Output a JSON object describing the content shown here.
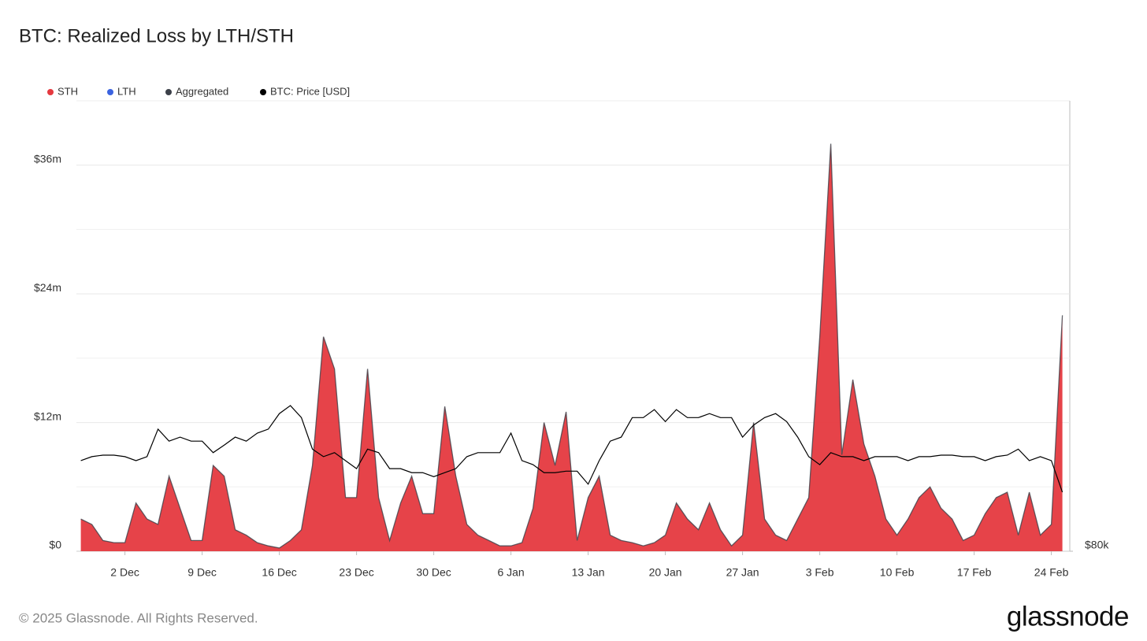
{
  "chart_data": {
    "type": "area",
    "title": "BTC: Realized Loss by LTH/STH",
    "footer": "© 2025 Glassnode. All Rights Reserved.",
    "brand": "glassnode",
    "x": [
      "28 Nov",
      "29 Nov",
      "30 Nov",
      "1 Dec",
      "2 Dec",
      "3 Dec",
      "4 Dec",
      "5 Dec",
      "6 Dec",
      "7 Dec",
      "8 Dec",
      "9 Dec",
      "10 Dec",
      "11 Dec",
      "12 Dec",
      "13 Dec",
      "14 Dec",
      "15 Dec",
      "16 Dec",
      "17 Dec",
      "18 Dec",
      "19 Dec",
      "20 Dec",
      "21 Dec",
      "22 Dec",
      "23 Dec",
      "24 Dec",
      "25 Dec",
      "26 Dec",
      "27 Dec",
      "28 Dec",
      "29 Dec",
      "30 Dec",
      "31 Dec",
      "1 Jan",
      "2 Jan",
      "3 Jan",
      "4 Jan",
      "5 Jan",
      "6 Jan",
      "7 Jan",
      "8 Jan",
      "9 Jan",
      "10 Jan",
      "11 Jan",
      "12 Jan",
      "13 Jan",
      "14 Jan",
      "15 Jan",
      "16 Jan",
      "17 Jan",
      "18 Jan",
      "19 Jan",
      "20 Jan",
      "21 Jan",
      "22 Jan",
      "23 Jan",
      "24 Jan",
      "25 Jan",
      "26 Jan",
      "27 Jan",
      "28 Jan",
      "29 Jan",
      "30 Jan",
      "31 Jan",
      "1 Feb",
      "2 Feb",
      "3 Feb",
      "4 Feb",
      "5 Feb",
      "6 Feb",
      "7 Feb",
      "8 Feb",
      "9 Feb",
      "10 Feb",
      "11 Feb",
      "12 Feb",
      "13 Feb",
      "14 Feb",
      "15 Feb",
      "16 Feb",
      "17 Feb",
      "18 Feb",
      "19 Feb",
      "20 Feb",
      "21 Feb",
      "22 Feb",
      "23 Feb",
      "24 Feb",
      "25 Feb"
    ],
    "xticks": [
      "2 Dec",
      "9 Dec",
      "16 Dec",
      "23 Dec",
      "30 Dec",
      "6 Jan",
      "13 Jan",
      "20 Jan",
      "27 Jan",
      "3 Feb",
      "10 Feb",
      "17 Feb",
      "24 Feb"
    ],
    "ylim": [
      0,
      42
    ],
    "yticks": [
      {
        "value": 0,
        "label": "$0"
      },
      {
        "value": 12,
        "label": "$12m"
      },
      {
        "value": 24,
        "label": "$24m"
      },
      {
        "value": 36,
        "label": "$36m"
      }
    ],
    "minor_grid": [
      6,
      18,
      30
    ],
    "y2lim": [
      80000,
      170000
    ],
    "y2ticks": [
      {
        "value": 80000,
        "label": "$80k"
      }
    ],
    "grid": true,
    "legend": "top-left",
    "series": [
      {
        "name": "STH",
        "color": "#e5393f",
        "values": [
          3,
          2.5,
          1,
          0.8,
          0.8,
          4.5,
          3,
          2.5,
          7,
          4,
          1,
          1,
          8,
          7,
          2,
          1.5,
          0.8,
          0.5,
          0.3,
          1,
          2,
          8,
          20,
          17,
          5,
          5,
          17,
          5,
          1,
          4.5,
          7,
          3.5,
          3.5,
          13.5,
          7,
          2.5,
          1.5,
          1,
          0.5,
          0.5,
          0.8,
          4,
          12,
          8,
          13,
          1,
          5,
          7,
          1.5,
          1,
          0.8,
          0.5,
          0.8,
          1.5,
          4.5,
          3,
          2,
          4.5,
          2,
          0.5,
          1.5,
          12,
          3,
          1.5,
          1,
          3,
          5,
          20,
          38,
          9,
          16,
          10,
          7,
          3,
          1.5,
          3,
          5,
          6,
          4,
          3,
          1,
          1.5,
          3.5,
          5,
          5.5,
          1.5,
          5.5,
          1.5,
          2.5,
          22
        ]
      },
      {
        "name": "LTH",
        "color": "#3b63e0",
        "values": [
          0,
          0,
          0,
          0,
          0,
          0,
          0,
          0,
          0,
          0,
          0,
          0,
          0,
          0,
          0,
          0,
          0,
          0,
          0,
          0,
          0,
          0,
          0,
          0,
          0,
          0,
          0,
          0,
          0,
          0,
          0,
          0,
          0,
          0,
          0,
          0,
          0,
          0,
          0,
          0,
          0,
          0,
          0,
          0,
          0,
          0,
          0,
          0,
          0,
          0,
          0,
          0,
          0,
          0,
          0,
          0,
          0,
          0,
          0,
          0,
          0,
          0,
          0,
          0,
          0,
          0,
          0,
          0,
          0,
          0,
          0,
          0,
          0,
          0,
          0,
          0,
          0,
          0,
          0,
          0,
          0,
          0,
          0,
          0,
          0,
          0,
          0,
          0,
          0,
          0
        ]
      },
      {
        "name": "Aggregated",
        "color": "#3c4049",
        "values": [
          3,
          2.5,
          1,
          0.8,
          0.8,
          4.5,
          3,
          2.5,
          7,
          4,
          1,
          1,
          8,
          7,
          2,
          1.5,
          0.8,
          0.5,
          0.3,
          1,
          2,
          8,
          20,
          17,
          5,
          5,
          17,
          5,
          1,
          4.5,
          7,
          3.5,
          3.5,
          13.5,
          7,
          2.5,
          1.5,
          1,
          0.5,
          0.5,
          0.8,
          4,
          12,
          8,
          13,
          1,
          5,
          7,
          1.5,
          1,
          0.8,
          0.5,
          0.8,
          1.5,
          4.5,
          3,
          2,
          4.5,
          2,
          0.5,
          1.5,
          12,
          3,
          1.5,
          1,
          3,
          5,
          20,
          38,
          9,
          16,
          10,
          7,
          3,
          1.5,
          3,
          5,
          6,
          4,
          3,
          1,
          1.5,
          3.5,
          5,
          5.5,
          1.5,
          5.5,
          1.5,
          2.5,
          22
        ]
      },
      {
        "name": "BTC: Price [USD]",
        "color": "#000000",
        "axis": "y2",
        "values": [
          98100,
          98900,
          99200,
          99200,
          98900,
          98100,
          98900,
          104400,
          102000,
          102800,
          102000,
          102000,
          99700,
          101200,
          102800,
          102000,
          103600,
          104400,
          107500,
          109100,
          106700,
          100400,
          98900,
          99700,
          98100,
          96500,
          100400,
          99700,
          96500,
          96500,
          95700,
          95700,
          94900,
          95700,
          96500,
          98900,
          99700,
          99700,
          99700,
          103600,
          98100,
          97300,
          95700,
          95700,
          96000,
          96000,
          93400,
          98100,
          102000,
          102800,
          106700,
          106700,
          108300,
          105900,
          108300,
          106700,
          106700,
          107500,
          106700,
          106700,
          102800,
          105200,
          106700,
          107500,
          105900,
          102800,
          98900,
          97300,
          99700,
          98900,
          98900,
          98100,
          98900,
          98900,
          98900,
          98100,
          98900,
          98900,
          99200,
          99200,
          98900,
          98900,
          98100,
          98900,
          99200,
          100400,
          98100,
          98900,
          98100,
          91800
        ]
      }
    ]
  }
}
